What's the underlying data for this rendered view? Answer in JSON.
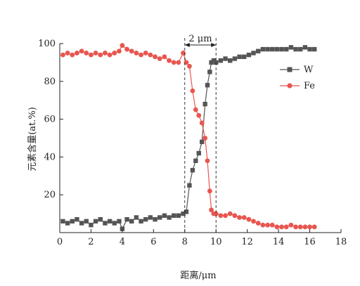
{
  "chart_data": {
    "type": "line",
    "title": "",
    "xlabel": "距离/μm",
    "ylabel": "元素含量(at.%)",
    "xlim": [
      0,
      18
    ],
    "ylim": [
      0,
      100
    ],
    "x_ticks": [
      "0",
      "2",
      "4",
      "6",
      "8",
      "10",
      "12",
      "14",
      "16",
      "18"
    ],
    "y_ticks": [
      "20",
      "40",
      "60",
      "80",
      "100"
    ],
    "grid": false,
    "legend_position": "top-right",
    "annotation": {
      "text": "2 μm",
      "from_x": 8.0,
      "to_x": 10.0
    },
    "series": [
      {
        "name": "W",
        "color": "#555555",
        "marker": "square",
        "x": [
          0.2,
          0.5,
          0.8,
          1.1,
          1.4,
          1.7,
          2.0,
          2.3,
          2.6,
          2.9,
          3.2,
          3.5,
          3.8,
          4.0,
          4.3,
          4.6,
          4.9,
          5.2,
          5.5,
          5.8,
          6.1,
          6.4,
          6.7,
          7.0,
          7.3,
          7.6,
          7.9,
          8.1,
          8.3,
          8.5,
          8.7,
          8.9,
          9.1,
          9.3,
          9.45,
          9.6,
          9.7,
          9.85,
          10.0,
          10.3,
          10.6,
          10.9,
          11.2,
          11.5,
          11.8,
          12.1,
          12.4,
          12.7,
          13.0,
          13.3,
          13.6,
          13.9,
          14.2,
          14.5,
          14.8,
          15.1,
          15.4,
          15.7,
          16.0,
          16.3
        ],
        "values": [
          6,
          5,
          6,
          7,
          5,
          6,
          4,
          6,
          7,
          5,
          6,
          5,
          6,
          2,
          7,
          6,
          8,
          6,
          7,
          8,
          7,
          8,
          9,
          8,
          9,
          9,
          10,
          11,
          25,
          33,
          38,
          42,
          48,
          68,
          78,
          85,
          90,
          91,
          90,
          91,
          92,
          91,
          92,
          93,
          93,
          94,
          95,
          96,
          97,
          97,
          97,
          97,
          97,
          97,
          98,
          97,
          97,
          98,
          97,
          97
        ]
      },
      {
        "name": "Fe",
        "color": "#e8564f",
        "marker": "circle",
        "x": [
          0.2,
          0.5,
          0.8,
          1.1,
          1.4,
          1.7,
          2.0,
          2.3,
          2.6,
          2.9,
          3.2,
          3.5,
          3.8,
          4.0,
          4.3,
          4.6,
          4.9,
          5.2,
          5.5,
          5.8,
          6.1,
          6.4,
          6.7,
          7.0,
          7.3,
          7.6,
          7.9,
          8.1,
          8.3,
          8.5,
          8.7,
          8.9,
          9.1,
          9.3,
          9.45,
          9.6,
          9.7,
          9.85,
          10.0,
          10.3,
          10.6,
          10.9,
          11.2,
          11.5,
          11.8,
          12.1,
          12.4,
          12.7,
          13.0,
          13.3,
          13.6,
          13.9,
          14.2,
          14.5,
          14.8,
          15.1,
          15.4,
          15.7,
          16.0,
          16.3
        ],
        "values": [
          94,
          95,
          94,
          95,
          96,
          95,
          94,
          95,
          94,
          95,
          94,
          95,
          96,
          99,
          97,
          96,
          95,
          94,
          95,
          94,
          93,
          92,
          93,
          91,
          90,
          90,
          95,
          90,
          88,
          75,
          65,
          62,
          58,
          50,
          38,
          22,
          12,
          10,
          10,
          9,
          9,
          10,
          9,
          8,
          8,
          7,
          6,
          5,
          4,
          4,
          4,
          3,
          3,
          3,
          4,
          3,
          3,
          3,
          3,
          3
        ]
      }
    ]
  }
}
